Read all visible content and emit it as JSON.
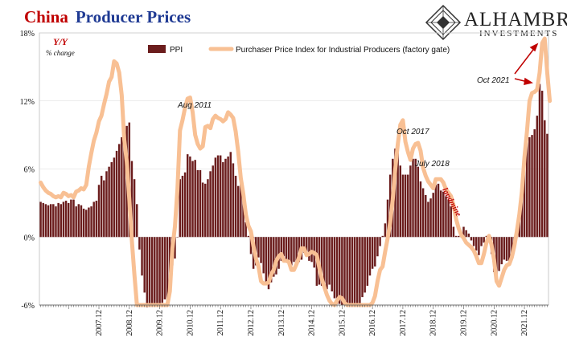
{
  "title": {
    "part1": "China",
    "part2": "Producer Prices"
  },
  "brand": {
    "name": "ALHAMBRA",
    "sub": "INVESTMENTS"
  },
  "colors": {
    "bar": "#6b1d1d",
    "line": "#f8c094",
    "title_red": "#c00000",
    "title_blue": "#1f3a93"
  },
  "chart_data": {
    "type": "bar",
    "ylim": [
      -6,
      18
    ],
    "yticks": [
      "18%",
      "12%",
      "6%",
      "0%",
      "-6%"
    ],
    "ytick_values": [
      18,
      12,
      6,
      0,
      -6
    ],
    "xticks": [
      "2007.12",
      "2008.12",
      "2009.12",
      "2010.12",
      "2011.12",
      "2012.12",
      "2013.12",
      "2014.12",
      "2015.12",
      "2016.12",
      "2017.12",
      "2018.12",
      "2019.12",
      "2020.12",
      "2021.12"
    ],
    "x_start": "2006-01",
    "y_unit_label": "Y/Y",
    "y_unit_sub": "% change",
    "legend": [
      "PPI",
      "Purchaser Price Index for Industrial Producers (factory gate)"
    ],
    "series": [
      {
        "name": "PPI",
        "kind": "bar",
        "values": [
          3.1,
          3.0,
          2.9,
          2.8,
          2.9,
          2.9,
          2.7,
          3.0,
          2.9,
          3.1,
          3.2,
          3.0,
          3.3,
          3.3,
          2.7,
          2.9,
          2.8,
          2.5,
          2.4,
          2.6,
          2.7,
          3.1,
          3.2,
          4.6,
          5.4,
          5.0,
          5.8,
          6.2,
          6.6,
          7.0,
          7.6,
          8.2,
          8.8,
          9.0,
          9.8,
          10.1,
          6.7,
          5.1,
          2.9,
          -1.1,
          -3.4,
          -4.9,
          -6.2,
          -6.0,
          -6.0,
          -6.0,
          -6.0,
          -6.0,
          -5.8,
          -5.5,
          -5.9,
          -3.5,
          -2.5,
          -1.9,
          0.0,
          5.1,
          5.4,
          5.7,
          7.3,
          7.1,
          6.7,
          6.8,
          5.9,
          5.9,
          4.8,
          4.7,
          5.1,
          5.8,
          6.3,
          7.0,
          7.2,
          7.2,
          6.6,
          6.9,
          7.1,
          7.5,
          6.5,
          5.4,
          4.5,
          4.7,
          3.6,
          1.3,
          0.1,
          -1.5,
          -2.8,
          -2.5,
          -1.8,
          -2.3,
          -3.2,
          -4.1,
          -4.6,
          -4.0,
          -3.5,
          -3.3,
          -2.8,
          -2.1,
          -1.7,
          -2.0,
          -2.3,
          -2.5,
          -2.2,
          -2.2,
          -2.2,
          -2.0,
          -1.4,
          -1.6,
          -2.1,
          -2.2,
          -2.7,
          -4.3,
          -4.2,
          -4.3,
          -4.5,
          -4.6,
          -4.2,
          -4.8,
          -5.4,
          -5.9,
          -5.9,
          -6.0,
          -6.0,
          -6.0,
          -6.0,
          -6.0,
          -6.0,
          -6.0,
          -6.0,
          -5.3,
          -4.9,
          -4.3,
          -3.4,
          -2.8,
          -2.6,
          -1.7,
          -0.8,
          0.1,
          1.2,
          3.3,
          5.5,
          6.9,
          7.8,
          7.6,
          6.3,
          5.5,
          5.5,
          5.5,
          6.3,
          6.9,
          6.9,
          6.2,
          4.9,
          4.3,
          3.7,
          3.1,
          3.4,
          3.9,
          4.6,
          4.7,
          4.1,
          4.0,
          3.6,
          3.3,
          2.7,
          0.9,
          0.1,
          0.1,
          0.4,
          0.9,
          0.6,
          0.3,
          -0.3,
          -0.8,
          -1.2,
          -1.6,
          -0.8,
          -0.5,
          0.1,
          -0.4,
          -1.5,
          -3.1,
          -3.7,
          -3.0,
          -2.4,
          -2.0,
          -2.1,
          -2.1,
          -1.5,
          -0.4,
          0.3,
          1.7,
          4.4,
          6.8,
          9.0,
          8.8,
          9.0,
          9.5,
          10.7,
          13.5,
          12.9,
          10.3,
          9.1
        ]
      },
      {
        "name": "Purchaser Price Index for Industrial Producers (factory gate)",
        "kind": "line",
        "values": [
          4.8,
          4.4,
          4.1,
          3.9,
          3.8,
          3.6,
          3.5,
          3.6,
          3.5,
          3.9,
          3.8,
          3.6,
          3.7,
          3.5,
          4.0,
          4.1,
          4.3,
          4.2,
          4.6,
          6.2,
          7.4,
          8.5,
          9.2,
          10.2,
          10.7,
          11.7,
          12.6,
          13.7,
          14.1,
          15.5,
          15.3,
          14.5,
          12.5,
          8.6,
          6.6,
          3.3,
          -0.3,
          -3.3,
          -6.0,
          -6.0,
          -6.0,
          -6.0,
          -6.0,
          -6.0,
          -6.0,
          -6.0,
          -6.0,
          -6.0,
          -6.0,
          -6.0,
          -6.0,
          -4.8,
          -1.0,
          0.9,
          4.2,
          9.4,
          10.3,
          11.4,
          12.2,
          12.3,
          11.0,
          9.0,
          8.2,
          7.8,
          8.0,
          9.7,
          9.8,
          9.6,
          10.4,
          10.7,
          10.5,
          10.4,
          10.2,
          10.4,
          11.0,
          10.8,
          10.5,
          9.3,
          7.5,
          5.2,
          3.8,
          2.0,
          1.0,
          0.5,
          -0.8,
          -1.9,
          -2.6,
          -3.9,
          -4.1,
          -4.1,
          -4.0,
          -3.3,
          -2.9,
          -2.1,
          -1.7,
          -1.5,
          -2.1,
          -2.1,
          -2.2,
          -2.9,
          -2.9,
          -2.4,
          -1.8,
          -1.0,
          -1.0,
          -1.6,
          -1.5,
          -1.3,
          -1.4,
          -1.6,
          -2.7,
          -3.7,
          -4.4,
          -5.1,
          -5.6,
          -5.9,
          -6.0,
          -5.6,
          -5.3,
          -5.4,
          -5.8,
          -6.0,
          -6.0,
          -6.0,
          -6.0,
          -6.0,
          -6.0,
          -6.0,
          -6.0,
          -6.0,
          -6.0,
          -5.8,
          -5.2,
          -3.9,
          -2.9,
          -2.6,
          -1.3,
          -0.1,
          1.3,
          3.3,
          6.0,
          8.2,
          9.9,
          10.3,
          8.4,
          7.5,
          6.8,
          7.8,
          8.2,
          8.3,
          7.6,
          6.1,
          5.4,
          4.9,
          4.6,
          4.3,
          5.1,
          5.1,
          5.1,
          4.8,
          4.2,
          3.9,
          3.6,
          2.8,
          1.6,
          0.8,
          0.2,
          -0.1,
          -0.5,
          -0.7,
          -0.9,
          -1.2,
          -1.7,
          -2.3,
          -2.3,
          -1.5,
          -0.5,
          0.1,
          -0.7,
          -2.0,
          -3.9,
          -4.3,
          -3.6,
          -2.9,
          -2.5,
          -2.4,
          -1.8,
          -0.8,
          0.5,
          2.0,
          4.0,
          7.0,
          9.3,
          12.0,
          12.7,
          12.8,
          13.0,
          14.5,
          17.1,
          17.5,
          14.5,
          12.0
        ]
      }
    ],
    "annotations": [
      "Aug 2011",
      "Oct 2017",
      "July 2018",
      "landmine",
      "Oct 2021"
    ]
  }
}
